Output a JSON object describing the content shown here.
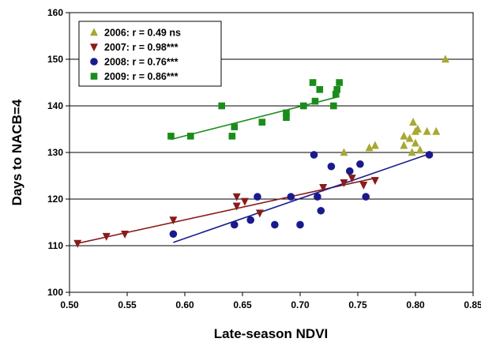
{
  "chart_data": {
    "type": "scatter",
    "xlabel": "Late-season NDVI",
    "ylabel": "Days to NACB=4",
    "xlim": [
      0.5,
      0.85
    ],
    "ylim": [
      100,
      160
    ],
    "xticks": [
      "0.50",
      "0.55",
      "0.60",
      "0.65",
      "0.70",
      "0.75",
      "0.80",
      "0.85"
    ],
    "yticks": [
      "100",
      "110",
      "120",
      "130",
      "140",
      "150",
      "160"
    ],
    "grid": "horizontal",
    "legend_position": "top-left",
    "series": [
      {
        "name": "2006:  r = 0.49 ns",
        "marker": "triangle-up",
        "color": "#a8a832",
        "points": [
          [
            0.738,
            130.0
          ],
          [
            0.76,
            131.0
          ],
          [
            0.765,
            131.5
          ],
          [
            0.79,
            133.5
          ],
          [
            0.79,
            131.5
          ],
          [
            0.795,
            133.0
          ],
          [
            0.798,
            136.5
          ],
          [
            0.797,
            130.0
          ],
          [
            0.8,
            132.0
          ],
          [
            0.8,
            134.5
          ],
          [
            0.802,
            135.0
          ],
          [
            0.804,
            130.5
          ],
          [
            0.81,
            134.5
          ],
          [
            0.818,
            134.5
          ],
          [
            0.826,
            150.0
          ]
        ],
        "trendline": null
      },
      {
        "name": "2007:  r = 0.98***",
        "marker": "triangle-down",
        "color": "#8b1a1a",
        "points": [
          [
            0.507,
            110.5
          ],
          [
            0.532,
            112.0
          ],
          [
            0.548,
            112.5
          ],
          [
            0.59,
            115.5
          ],
          [
            0.645,
            118.5
          ],
          [
            0.645,
            120.5
          ],
          [
            0.652,
            119.5
          ],
          [
            0.665,
            117.0
          ],
          [
            0.72,
            122.5
          ],
          [
            0.738,
            123.5
          ],
          [
            0.745,
            124.5
          ],
          [
            0.755,
            123.0
          ],
          [
            0.765,
            124.0
          ]
        ],
        "trendline": [
          [
            0.507,
            110.5
          ],
          [
            0.765,
            124.5
          ]
        ]
      },
      {
        "name": "2008:  r = 0.76***",
        "marker": "circle",
        "color": "#1a1a8c",
        "points": [
          [
            0.59,
            112.5
          ],
          [
            0.643,
            114.5
          ],
          [
            0.657,
            115.5
          ],
          [
            0.663,
            120.5
          ],
          [
            0.678,
            114.5
          ],
          [
            0.692,
            120.5
          ],
          [
            0.7,
            114.5
          ],
          [
            0.712,
            129.5
          ],
          [
            0.715,
            120.5
          ],
          [
            0.718,
            117.5
          ],
          [
            0.727,
            127.0
          ],
          [
            0.743,
            126.0
          ],
          [
            0.752,
            127.5
          ],
          [
            0.757,
            120.5
          ],
          [
            0.812,
            129.5
          ]
        ],
        "trendline": [
          [
            0.59,
            110.7
          ],
          [
            0.812,
            129.7
          ]
        ]
      },
      {
        "name": "2009:  r = 0.86***",
        "marker": "square",
        "color": "#1a8c1a",
        "points": [
          [
            0.588,
            133.5
          ],
          [
            0.605,
            133.5
          ],
          [
            0.632,
            140.0
          ],
          [
            0.641,
            133.5
          ],
          [
            0.643,
            135.5
          ],
          [
            0.667,
            136.5
          ],
          [
            0.688,
            137.5
          ],
          [
            0.688,
            138.5
          ],
          [
            0.703,
            140.0
          ],
          [
            0.711,
            145.0
          ],
          [
            0.713,
            141.0
          ],
          [
            0.717,
            143.5
          ],
          [
            0.729,
            140.0
          ],
          [
            0.731,
            142.5
          ],
          [
            0.732,
            143.5
          ],
          [
            0.734,
            145.0
          ]
        ],
        "trendline": [
          [
            0.588,
            132.8
          ],
          [
            0.734,
            142.0
          ]
        ]
      }
    ]
  }
}
